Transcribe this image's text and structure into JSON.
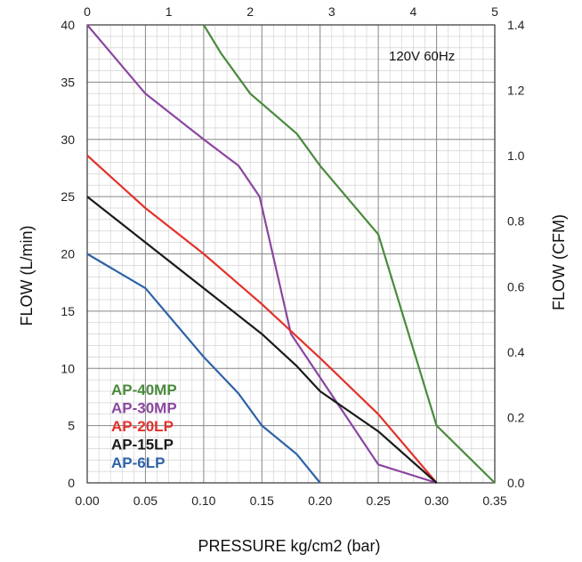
{
  "chart_data": {
    "type": "line",
    "note": "120V 60Hz",
    "xlabel": "PRESSURE kg/cm2 (bar)",
    "ylabel": "FLOW (L/min)",
    "y2label": "FLOW (CFM)",
    "xlim": [
      0,
      0.35
    ],
    "ylim": [
      0,
      40
    ],
    "x_ticks": [
      "0.00",
      "0.05",
      "0.10",
      "0.15",
      "0.20",
      "0.25",
      "0.30",
      "0.35"
    ],
    "y_ticks": [
      "0",
      "5",
      "10",
      "15",
      "20",
      "25",
      "30",
      "35",
      "40"
    ],
    "x2_ticks": [
      "0",
      "1",
      "2",
      "3",
      "4",
      "5"
    ],
    "y2_ticks": [
      "0.0",
      "0.2",
      "0.4",
      "0.6",
      "0.8",
      "1.0",
      "1.2",
      "1.4"
    ],
    "x2lim": [
      0,
      5
    ],
    "y2lim": [
      0,
      1.4
    ],
    "grid": true,
    "legend_position": "bottom-left",
    "series": [
      {
        "name": "AP-40MP",
        "color": "#4a8a3c",
        "points": [
          [
            0.1,
            40
          ],
          [
            0.115,
            37.5
          ],
          [
            0.14,
            34
          ],
          [
            0.18,
            30.5
          ],
          [
            0.2,
            27.7
          ],
          [
            0.25,
            21.7
          ],
          [
            0.3,
            5
          ],
          [
            0.35,
            0
          ]
        ]
      },
      {
        "name": "AP-30MP",
        "color": "#8b46a0",
        "points": [
          [
            0.0,
            40
          ],
          [
            0.05,
            34
          ],
          [
            0.1,
            30
          ],
          [
            0.13,
            27.7
          ],
          [
            0.148,
            25
          ],
          [
            0.175,
            13
          ],
          [
            0.25,
            1.6
          ],
          [
            0.3,
            0
          ]
        ]
      },
      {
        "name": "AP-20LP",
        "color": "#e3312a",
        "points": [
          [
            0.0,
            28.6
          ],
          [
            0.05,
            24
          ],
          [
            0.1,
            20
          ],
          [
            0.15,
            15.6
          ],
          [
            0.2,
            10.9
          ],
          [
            0.25,
            6
          ],
          [
            0.3,
            0
          ]
        ]
      },
      {
        "name": "AP-15LP",
        "color": "#1a1a1a",
        "points": [
          [
            0.0,
            25
          ],
          [
            0.05,
            21
          ],
          [
            0.1,
            17
          ],
          [
            0.15,
            13
          ],
          [
            0.18,
            10.2
          ],
          [
            0.2,
            8
          ],
          [
            0.25,
            4.5
          ],
          [
            0.3,
            0
          ]
        ]
      },
      {
        "name": "AP-6LP",
        "color": "#2e62a8",
        "points": [
          [
            0.0,
            20
          ],
          [
            0.05,
            17
          ],
          [
            0.1,
            11
          ],
          [
            0.13,
            7.8
          ],
          [
            0.15,
            5
          ],
          [
            0.18,
            2.5
          ],
          [
            0.2,
            0
          ]
        ]
      }
    ]
  }
}
